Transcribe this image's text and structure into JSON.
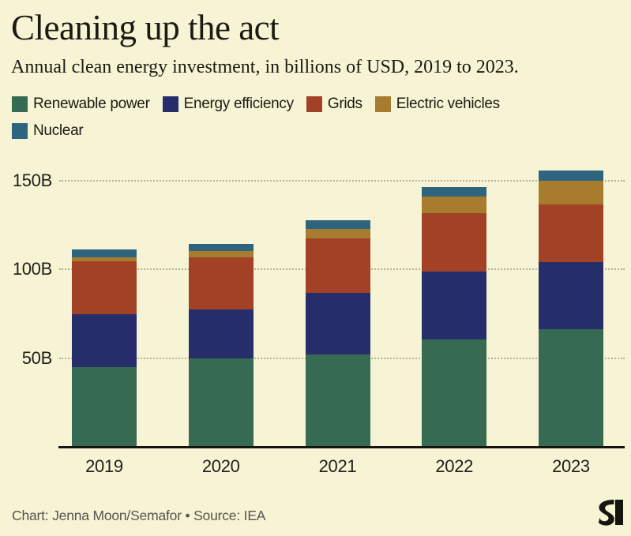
{
  "header": {
    "title": "Cleaning up the act",
    "subtitle": "Annual clean energy investment, in billions of USD, 2019 to 2023."
  },
  "legend": {
    "items": [
      {
        "label": "Renewable power",
        "color": "#366a52"
      },
      {
        "label": "Energy efficiency",
        "color": "#252e6b"
      },
      {
        "label": "Grids",
        "color": "#a34127"
      },
      {
        "label": "Electric vehicles",
        "color": "#a87c2e"
      },
      {
        "label": "Nuclear",
        "color": "#2e657e"
      }
    ]
  },
  "chart_data": {
    "type": "bar",
    "stacked": true,
    "title": "Cleaning up the act",
    "subtitle": "Annual clean energy investment, in billions of USD, 2019 to 2023.",
    "categories": [
      "2019",
      "2020",
      "2021",
      "2022",
      "2023"
    ],
    "series": [
      {
        "name": "Renewable power",
        "color": "#366a52",
        "values": [
          45,
          50,
          52,
          60.5,
          66.5
        ]
      },
      {
        "name": "Energy efficiency",
        "color": "#252e6b",
        "values": [
          30,
          27.5,
          35,
          38.5,
          37.5
        ]
      },
      {
        "name": "Grids",
        "color": "#a34127",
        "values": [
          29.5,
          29.5,
          30.5,
          33,
          32.5
        ]
      },
      {
        "name": "Electric vehicles",
        "color": "#a87c2e",
        "values": [
          2.5,
          3.5,
          5.5,
          9,
          13.5
        ]
      },
      {
        "name": "Nuclear",
        "color": "#2e657e",
        "values": [
          4.5,
          4,
          5,
          5.5,
          6
        ]
      }
    ],
    "totals": [
      111.5,
      114.5,
      128,
      146.5,
      156
    ],
    "yticks": [
      {
        "value": 50,
        "label": "50B"
      },
      {
        "value": 100,
        "label": "100B"
      },
      {
        "value": 150,
        "label": "150B"
      }
    ],
    "ylim": [
      0,
      160
    ],
    "unit": "billions USD",
    "grid": "horizontal-dotted",
    "legend_position": "top"
  },
  "footer": {
    "credit": "Chart: Jenna Moon/Semafor • Source: IEA",
    "logo": "semafor-logo"
  },
  "colors": {
    "background": "#f7f3d5",
    "text": "#1b1b12",
    "muted_text": "#57554a",
    "gridline": "#b5b19b",
    "axis": "#15150f"
  }
}
